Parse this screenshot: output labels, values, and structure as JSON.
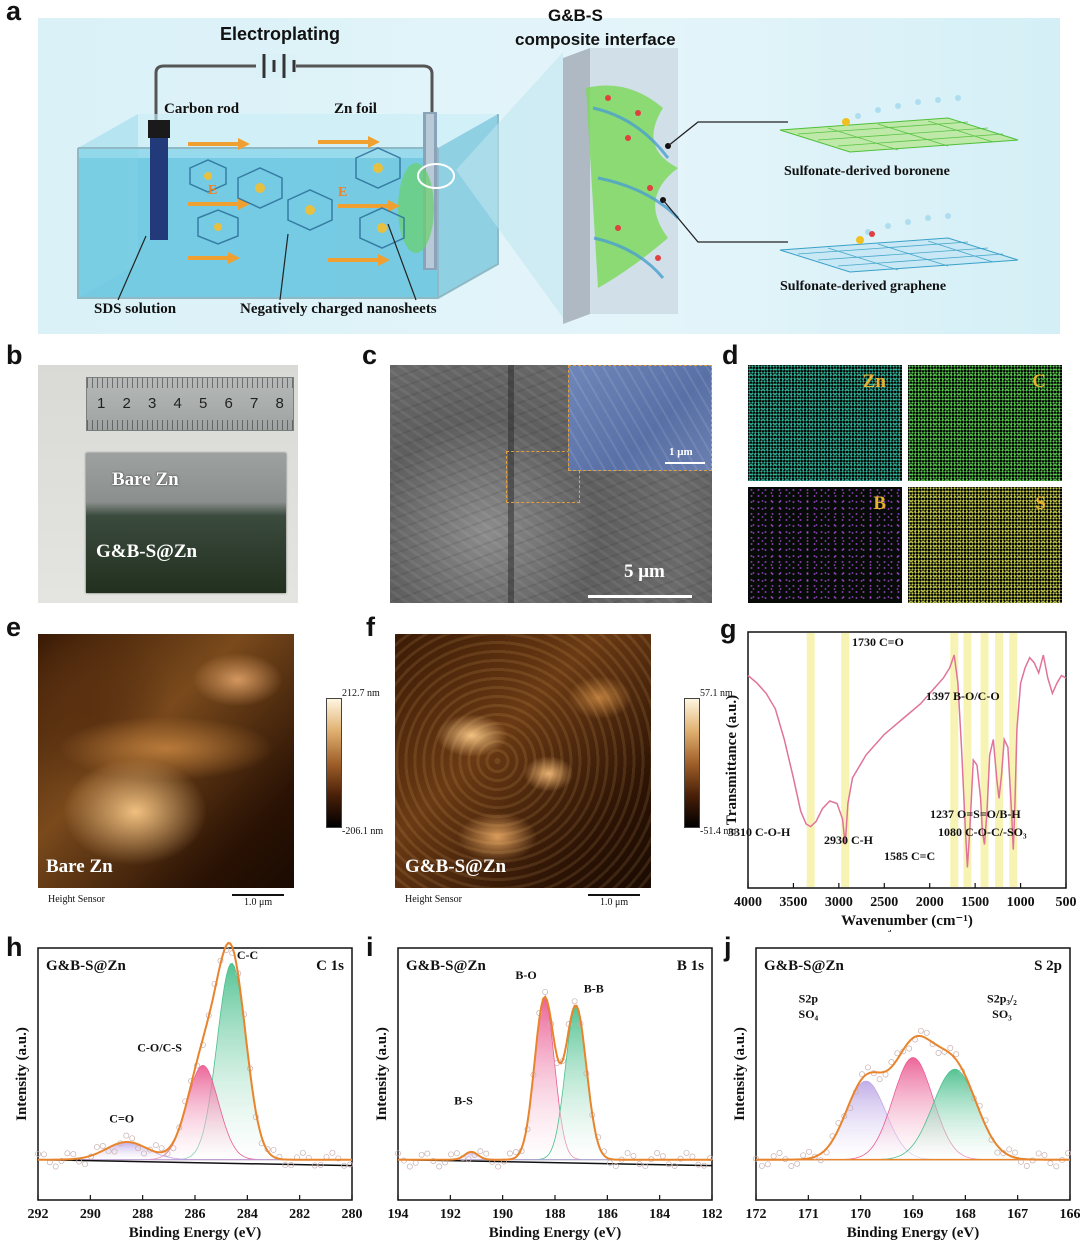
{
  "panels": {
    "a": {
      "letter": "a",
      "electroplating": "Electroplating",
      "carbon_rod": "Carbon rod",
      "zn_foil": "Zn foil",
      "sds_solution": "SDS solution",
      "neg_nanosheets": "Negatively charged nanosheets",
      "interface_title_1": "G&B-S",
      "interface_title_2": "composite interface",
      "boronene": "Sulfonate-derived boronene",
      "graphene": "Sulfonate-derived graphene",
      "field_label": "E"
    },
    "b": {
      "letter": "b",
      "bare_zn": "Bare Zn",
      "gbs_zn": "G&B-S@Zn",
      "ruler_numbers": [
        "1",
        "2",
        "3",
        "4",
        "5",
        "6",
        "7",
        "8"
      ]
    },
    "c": {
      "letter": "c",
      "scale_main": "5 μm",
      "scale_inset": "1 μm"
    },
    "d": {
      "letter": "d",
      "maps": [
        {
          "element": "Zn",
          "color": "#2fb39a"
        },
        {
          "element": "C",
          "color": "#56c84a"
        },
        {
          "element": "B",
          "color": "#a24ad6"
        },
        {
          "element": "S",
          "color": "#c6c84a"
        }
      ]
    },
    "e": {
      "letter": "e",
      "sample": "Bare Zn",
      "max": "212.7 nm",
      "min": "-206.1 nm",
      "scale": "1.0 μm",
      "sensor": "Height Sensor"
    },
    "f": {
      "letter": "f",
      "sample": "G&B-S@Zn",
      "max": "57.1 nm",
      "min": "-51.4 nm",
      "scale": "1.0 μm",
      "sensor": "Height Sensor"
    }
  },
  "chart_data": [
    {
      "id": "g",
      "letter": "g",
      "type": "line",
      "xlabel": "Wavenumber (cm⁻¹)",
      "ylabel": "Transmittance (a.u.)",
      "xlim": [
        4000,
        500
      ],
      "xticks": [
        4000,
        3500,
        3000,
        2500,
        2000,
        1500,
        1000,
        500
      ],
      "highlight_bands": [
        3310,
        2930,
        1730,
        1585,
        1397,
        1237,
        1080
      ],
      "series": [
        {
          "color": "#e0739a",
          "x": [
            4000,
            3900,
            3800,
            3700,
            3600,
            3500,
            3420,
            3360,
            3310,
            3250,
            3180,
            3100,
            3020,
            2960,
            2930,
            2900,
            2850,
            2700,
            2500,
            2300,
            2100,
            1950,
            1850,
            1780,
            1730,
            1690,
            1650,
            1610,
            1585,
            1560,
            1520,
            1480,
            1440,
            1420,
            1397,
            1370,
            1340,
            1300,
            1260,
            1237,
            1210,
            1180,
            1140,
            1100,
            1080,
            1060,
            1040,
            1000,
            950,
            900,
            850,
            800,
            750,
            700,
            650,
            600,
            550,
            500
          ],
          "y": [
            0.83,
            0.8,
            0.76,
            0.7,
            0.58,
            0.43,
            0.3,
            0.25,
            0.24,
            0.26,
            0.31,
            0.34,
            0.33,
            0.27,
            0.17,
            0.33,
            0.43,
            0.52,
            0.6,
            0.66,
            0.72,
            0.78,
            0.82,
            0.86,
            0.91,
            0.8,
            0.55,
            0.25,
            0.08,
            0.22,
            0.5,
            0.48,
            0.35,
            0.22,
            0.17,
            0.3,
            0.52,
            0.58,
            0.42,
            0.35,
            0.44,
            0.58,
            0.55,
            0.3,
            0.15,
            0.35,
            0.62,
            0.8,
            0.86,
            0.9,
            0.88,
            0.84,
            0.91,
            0.82,
            0.76,
            0.8,
            0.83,
            0.82
          ]
        }
      ],
      "annotations": [
        "3310 C-O-H",
        "2930 C-H",
        "1730 C=O",
        "1397 B-O/C-O",
        "1237 O=S=O/B-H",
        "1080 C-O-C/-SO₃",
        "1585 C=C"
      ]
    },
    {
      "id": "h",
      "letter": "h",
      "type": "line",
      "sample": "G&B-S@Zn",
      "region": "C 1s",
      "xlabel": "Binding Energy (eV)",
      "ylabel": "Intensity (a.u.)",
      "xlim": [
        292,
        280
      ],
      "xticks": [
        292,
        290,
        288,
        286,
        284,
        282,
        280
      ],
      "peaks": [
        {
          "name": "C-C",
          "center": 284.6,
          "height": 1.0,
          "width": 0.55,
          "color": "#3dbb85"
        },
        {
          "name": "C-O/C-S",
          "center": 285.7,
          "height": 0.48,
          "width": 0.6,
          "color": "#e8508a"
        },
        {
          "name": "C=O",
          "center": 288.6,
          "height": 0.09,
          "width": 0.8,
          "color": "#b9a2e4"
        }
      ],
      "envelope_color": "#e8842c"
    },
    {
      "id": "i",
      "letter": "i",
      "type": "line",
      "sample": "G&B-S@Zn",
      "region": "B 1s",
      "xlabel": "Binding Energy (eV)",
      "ylabel": "Intensity (a.u.)",
      "xlim": [
        194,
        182
      ],
      "xticks": [
        194,
        192,
        190,
        188,
        186,
        184,
        182
      ],
      "peaks": [
        {
          "name": "B-O",
          "center": 188.4,
          "height": 0.82,
          "width": 0.38,
          "color": "#e8508a"
        },
        {
          "name": "B-B",
          "center": 187.2,
          "height": 0.78,
          "width": 0.4,
          "color": "#3dbb85"
        },
        {
          "name": "B-S",
          "center": 191.2,
          "height": 0.04,
          "width": 0.25,
          "color": "#b9a2e4"
        }
      ],
      "envelope_color": "#e8842c"
    },
    {
      "id": "j",
      "letter": "j",
      "type": "line",
      "sample": "G&B-S@Zn",
      "region": "S 2p",
      "xlabel": "Binding Energy (eV)",
      "ylabel": "Intensity (a.u.)",
      "xlim": [
        172,
        166
      ],
      "xticks": [
        172,
        171,
        170,
        169,
        168,
        167,
        166
      ],
      "peaks": [
        {
          "name": "S2p SO₄",
          "center": 169.9,
          "height": 0.4,
          "width": 0.38,
          "color": "#b9a2e4"
        },
        {
          "name": "S2p₁/₂ SO₃",
          "center": 169.0,
          "height": 0.52,
          "width": 0.38,
          "color": "#e8508a"
        },
        {
          "name": "S2p₃/₂ SO₃",
          "center": 168.2,
          "height": 0.46,
          "width": 0.42,
          "color": "#3dbb85"
        }
      ],
      "envelope_color": "#e8842c",
      "labels": {
        "so4_1": "S2p",
        "so4_2": "SO₄",
        "s12_1": "S2p₁/₂",
        "s12_2": "SO₃",
        "s32_1": "S2p₃/₂",
        "s32_2": "SO₃"
      }
    }
  ]
}
